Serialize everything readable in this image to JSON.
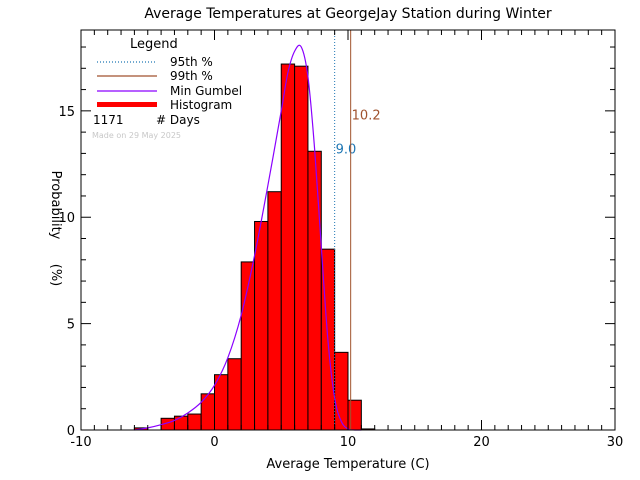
{
  "chart_data": {
    "type": "bar",
    "title": "Average Temperatures at GeorgeJay Station during Winter",
    "xlabel": "Average Temperature (C)",
    "ylabel": "Probability",
    "ylabel_unit": "(%)",
    "xlim": [
      -10,
      30
    ],
    "ylim": [
      0,
      18.8
    ],
    "xticks": [
      -10,
      0,
      10,
      20,
      30
    ],
    "yticks": [
      0,
      5,
      10,
      15
    ],
    "x_minor_step": 1,
    "y_minor_step": 1,
    "legend": {
      "title": "Legend",
      "placement": "top-left",
      "entries": [
        {
          "label": "95th %",
          "style": "dotted",
          "color": "#1f77b4"
        },
        {
          "label": "99th %",
          "style": "solid",
          "color": "#a0522d"
        },
        {
          "label": "Min Gumbel",
          "style": "solid",
          "color": "#8a00ff"
        },
        {
          "label": "Histogram",
          "style": "bar",
          "color": "#ff0000"
        }
      ],
      "count_value": "1171",
      "count_label": "# Days",
      "made_note": "Made on 29 May 2025"
    },
    "histogram": {
      "bin_edges": [
        -6,
        -5,
        -4,
        -3,
        -2,
        -1,
        0,
        1,
        2,
        3,
        4,
        5,
        6,
        7,
        8,
        9,
        10,
        11
      ],
      "values": [
        0.1,
        0.0,
        0.55,
        0.65,
        0.75,
        1.7,
        2.6,
        3.35,
        7.9,
        9.8,
        11.2,
        17.2,
        17.1,
        13.1,
        8.5,
        3.65,
        1.4
      ],
      "tail_bin": {
        "x0": 11,
        "x1": 12,
        "value": 0.05
      },
      "color": "#ff0000"
    },
    "gumbel_curve": {
      "name": "Min Gumbel",
      "color": "#8a00ff",
      "x": [
        -6,
        -5,
        -4,
        -3,
        -2,
        -1,
        0,
        1,
        2,
        3,
        4,
        5,
        5.5,
        6,
        6.5,
        7,
        7.5,
        8,
        8.5,
        9,
        9.5,
        10,
        10.5,
        11
      ],
      "y": [
        0.0,
        0.1,
        0.25,
        0.45,
        0.8,
        1.3,
        2.1,
        3.4,
        5.4,
        8.2,
        11.5,
        15.0,
        16.8,
        17.8,
        18.0,
        16.6,
        13.2,
        8.6,
        4.2,
        1.5,
        0.4,
        0.05,
        0.0,
        0.0
      ]
    },
    "percentile_lines": [
      {
        "name": "95th %",
        "x": 9.0,
        "label": "9.0",
        "style": "dotted",
        "color": "#1f77b4",
        "label_y": 13.0
      },
      {
        "name": "99th %",
        "x": 10.2,
        "label": "10.2",
        "style": "solid",
        "color": "#a0522d",
        "label_y": 14.6
      }
    ],
    "grid": false
  }
}
